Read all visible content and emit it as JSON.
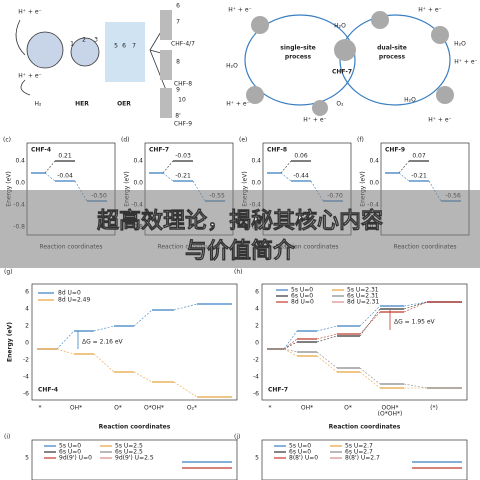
{
  "overlay": {
    "line1": "超高效理论，揭秘其核心内容",
    "line2": "与价值简介"
  },
  "panel_a": {
    "labels": [
      "H⁺ + e⁻",
      "H⁺ + e⁻",
      "H₂",
      "HER",
      "OER",
      "CHF-4/7",
      "CHF-8",
      "CHF-9",
      "1",
      "2",
      "3",
      "5",
      "6",
      "7",
      "6",
      "7",
      "8",
      "9",
      "10",
      "8'"
    ]
  },
  "panel_b": {
    "labels": [
      "H⁺ + e⁻",
      "H⁺ + e⁻",
      "H₂O",
      "single-site",
      "process",
      "dual-site",
      "process",
      "CHF-7",
      "H₂O",
      "H⁺ + e⁻",
      "O₂",
      "H⁺ + e⁻",
      "H₂O",
      "H⁺ + e⁻",
      "H⁺ + e⁻",
      "H₂O"
    ]
  },
  "small_panels": [
    {
      "letter": "(c)",
      "name": "CHF-4",
      "levels": [
        "0.21",
        "-0.04",
        "-0.50"
      ],
      "yticks": [
        "0.4",
        "0.0",
        "-0.4",
        "-0.8"
      ]
    },
    {
      "letter": "(d)",
      "name": "CHF-7",
      "levels": [
        "-0.03",
        "-0.21",
        "-0.55"
      ],
      "yticks": [
        "0.4",
        "0.0",
        "-0.4",
        "-0.8"
      ]
    },
    {
      "letter": "(e)",
      "name": "CHF-8",
      "levels": [
        "0.06",
        "-0.44",
        "-0.70"
      ],
      "yticks": [
        "0.4",
        "0.0",
        "-0.4",
        "-0.8"
      ]
    },
    {
      "letter": "(f)",
      "name": "CHF-9",
      "levels": [
        "0.07",
        "-0.21",
        "-0.56"
      ],
      "yticks": [
        "0.4",
        "0.0",
        "-0.4",
        "-0.8"
      ]
    }
  ],
  "small_axis": {
    "ylabel": "Energy (eV)",
    "xlabel": "Reaction coordinates"
  },
  "panel_g": {
    "letter": "(g)",
    "legend": [
      "8d U=0",
      "8d U=2.49"
    ],
    "annotation": "ΔG = 2.16 eV",
    "name": "CHF-4",
    "yticks": [
      "6",
      "4",
      "2",
      "0",
      "-2",
      "-4",
      "-6"
    ],
    "xticks": [
      "*",
      "OH*",
      "O*",
      "O*OH*",
      "O₂*"
    ],
    "ylabel": "Energy (eV)",
    "xlabel": "Reaction coordinates"
  },
  "panel_h": {
    "letter": "(h)",
    "legend": [
      "5s U=0",
      "5s U=2.31",
      "6s U=0",
      "6s U=2.31",
      "8d U=0",
      "8d U=2.31"
    ],
    "annotation": "ΔG = 1.95 eV",
    "name": "CHF-7",
    "yticks": [
      "6",
      "4",
      "2",
      "0",
      "-2",
      "-4",
      "-6"
    ],
    "xticks": [
      "*",
      "OH*",
      "O*",
      "OOH*",
      "(O*OH*)",
      "(*)"
    ],
    "xlabel": "Reaction coordinates"
  },
  "panel_i": {
    "letter": "(i)",
    "legend": [
      "5s U=0",
      "5s U=2.5",
      "6s U=0",
      "6s U=2.5",
      "9d(9') U=0",
      "9d(9') U=2.5"
    ],
    "ytick": "5"
  },
  "panel_j": {
    "letter": "(j)",
    "legend": [
      "5s U=0",
      "5s U=2.7",
      "6s U=0",
      "6s U=2.7",
      "8(8') U=0",
      "8(8') U=2.7"
    ],
    "ytick": "5"
  }
}
